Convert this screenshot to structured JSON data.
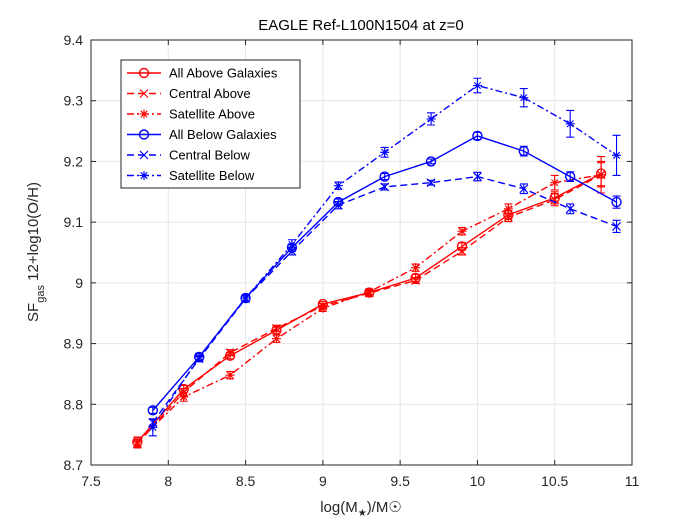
{
  "chart_data": {
    "type": "line",
    "title": "EAGLE Ref-L100N1504 at z=0",
    "xlabel": "log(M★)/M☉",
    "ylabel": "SF_gas 12+log10(O/H)",
    "xlim": [
      7.5,
      11
    ],
    "ylim": [
      8.7,
      9.4
    ],
    "xticks": [
      "7.5",
      "8",
      "8.5",
      "9",
      "9.5",
      "10",
      "10.5",
      "11"
    ],
    "yticks": [
      "8.7",
      "8.8",
      "8.9",
      "9",
      "9.1",
      "9.2",
      "9.3",
      "9.4"
    ],
    "grid": true,
    "legend_position": "top-left",
    "series": [
      {
        "name": "All Above Galaxies",
        "color": "#ff0000",
        "line_style": "solid",
        "marker": "circle",
        "x": [
          7.8,
          8.1,
          8.4,
          8.7,
          9.0,
          9.3,
          9.6,
          9.9,
          10.2,
          10.5,
          10.8
        ],
        "y": [
          8.738,
          8.825,
          8.88,
          8.922,
          8.965,
          8.984,
          9.008,
          9.06,
          9.112,
          9.14,
          9.18
        ],
        "err": [
          0.008,
          0.006,
          0.005,
          0.005,
          0.004,
          0.005,
          0.006,
          0.006,
          0.007,
          0.01,
          0.02
        ]
      },
      {
        "name": "Central Above",
        "color": "#ff0000",
        "line_style": "dashed",
        "marker": "x",
        "x": [
          7.8,
          8.1,
          8.4,
          8.7,
          9.0,
          9.3,
          9.6,
          9.9,
          10.2,
          10.5,
          10.8
        ],
        "y": [
          8.735,
          8.82,
          8.885,
          8.925,
          8.962,
          8.983,
          9.004,
          9.052,
          9.108,
          9.137,
          9.178
        ],
        "err": [
          0.007,
          0.006,
          0.005,
          0.005,
          0.004,
          0.005,
          0.005,
          0.006,
          0.007,
          0.01,
          0.02
        ]
      },
      {
        "name": "Satellite Above",
        "color": "#ff0000",
        "line_style": "dashdot",
        "marker": "star",
        "x": [
          7.8,
          8.1,
          8.4,
          8.7,
          9.0,
          9.3,
          9.6,
          9.9,
          10.2,
          10.5,
          10.8
        ],
        "y": [
          8.738,
          8.812,
          8.848,
          8.908,
          8.958,
          8.985,
          9.025,
          9.085,
          9.122,
          9.165,
          9.178
        ],
        "err": [
          0.008,
          0.007,
          0.006,
          0.006,
          0.005,
          0.005,
          0.006,
          0.006,
          0.008,
          0.012,
          0.03
        ]
      },
      {
        "name": "All Below Galaxies",
        "color": "#0000ff",
        "line_style": "solid",
        "marker": "circle",
        "x": [
          7.9,
          8.2,
          8.5,
          8.8,
          9.1,
          9.4,
          9.7,
          10.0,
          10.3,
          10.6,
          10.9
        ],
        "y": [
          8.79,
          8.878,
          8.975,
          9.058,
          9.133,
          9.175,
          9.2,
          9.242,
          9.217,
          9.175,
          9.133
        ],
        "err": [
          0.005,
          0.006,
          0.005,
          0.006,
          0.005,
          0.005,
          0.004,
          0.006,
          0.008,
          0.008,
          0.01
        ]
      },
      {
        "name": "Central Below",
        "color": "#0000ff",
        "line_style": "dashed",
        "marker": "x",
        "x": [
          7.9,
          8.2,
          8.5,
          8.8,
          9.1,
          9.4,
          9.7,
          10.0,
          10.3,
          10.6,
          10.9
        ],
        "y": [
          8.77,
          8.875,
          8.974,
          9.052,
          9.128,
          9.158,
          9.165,
          9.175,
          9.155,
          9.122,
          9.093
        ],
        "err": [
          0.005,
          0.005,
          0.005,
          0.006,
          0.006,
          0.005,
          0.004,
          0.007,
          0.008,
          0.008,
          0.01
        ]
      },
      {
        "name": "Satellite Below",
        "color": "#0000ff",
        "line_style": "dashdot",
        "marker": "star",
        "x": [
          7.9,
          8.2,
          8.5,
          8.8,
          9.1,
          9.4,
          9.7,
          10.0,
          10.3,
          10.6,
          10.9
        ],
        "y": [
          8.762,
          8.878,
          8.975,
          9.063,
          9.16,
          9.215,
          9.27,
          9.325,
          9.305,
          9.262,
          9.21
        ],
        "err": [
          0.014,
          0.006,
          0.006,
          0.008,
          0.006,
          0.008,
          0.01,
          0.012,
          0.015,
          0.022,
          0.033
        ]
      }
    ]
  }
}
